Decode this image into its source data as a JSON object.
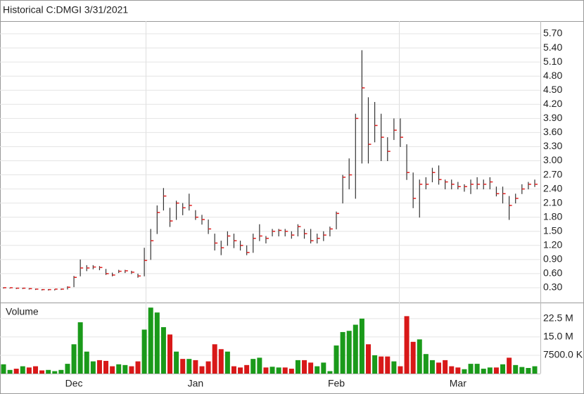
{
  "chart_data": {
    "type": "ohlc",
    "title": "Historical C:DMGI 3/31/2021",
    "categories": [
      null,
      null,
      null,
      null,
      null,
      null,
      null,
      null,
      null,
      null,
      null,
      "Dec",
      null,
      null,
      null,
      null,
      null,
      null,
      null,
      null,
      null,
      null,
      null,
      null,
      null,
      null,
      null,
      null,
      null,
      null,
      "Jan",
      null,
      null,
      null,
      null,
      null,
      null,
      null,
      null,
      null,
      null,
      null,
      null,
      null,
      null,
      null,
      null,
      null,
      null,
      null,
      null,
      null,
      "Feb",
      null,
      null,
      null,
      null,
      null,
      null,
      null,
      null,
      null,
      null,
      null,
      null,
      null,
      null,
      null,
      null,
      null,
      null,
      "Mar",
      null,
      null,
      null,
      null,
      null,
      null,
      null,
      null,
      null,
      null,
      null,
      null
    ],
    "high": [
      0.31,
      0.3,
      0.3,
      0.3,
      0.29,
      0.28,
      0.27,
      0.27,
      0.27,
      0.28,
      0.33,
      0.55,
      0.9,
      0.78,
      0.78,
      0.76,
      0.7,
      0.62,
      0.68,
      0.68,
      0.66,
      0.6,
      1.15,
      1.55,
      2.05,
      2.42,
      2.0,
      2.15,
      2.1,
      2.3,
      1.95,
      1.85,
      1.75,
      1.45,
      1.3,
      1.5,
      1.45,
      1.3,
      1.2,
      1.45,
      1.65,
      1.4,
      1.55,
      1.55,
      1.55,
      1.5,
      1.65,
      1.55,
      1.55,
      1.45,
      1.5,
      1.6,
      1.92,
      2.7,
      3.05,
      4.0,
      5.35,
      4.35,
      4.25,
      4.0,
      3.5,
      3.9,
      3.9,
      3.35,
      2.75,
      2.6,
      2.65,
      2.85,
      2.9,
      2.6,
      2.6,
      2.55,
      2.5,
      2.6,
      2.65,
      2.6,
      2.65,
      2.45,
      2.45,
      2.25,
      2.3,
      2.5,
      2.55,
      2.6
    ],
    "low": [
      0.29,
      0.29,
      0.28,
      0.28,
      0.27,
      0.26,
      0.25,
      0.25,
      0.25,
      0.26,
      0.27,
      0.32,
      0.55,
      0.66,
      0.7,
      0.68,
      0.58,
      0.55,
      0.62,
      0.62,
      0.6,
      0.52,
      0.55,
      0.9,
      1.45,
      1.95,
      1.6,
      1.75,
      1.85,
      1.95,
      1.75,
      1.65,
      1.45,
      1.1,
      1.0,
      1.2,
      1.15,
      1.1,
      1.0,
      1.05,
      1.3,
      1.25,
      1.4,
      1.4,
      1.4,
      1.35,
      1.4,
      1.35,
      1.25,
      1.25,
      1.3,
      1.4,
      1.55,
      2.1,
      2.4,
      2.2,
      2.95,
      2.95,
      3.4,
      3.0,
      3.0,
      3.45,
      3.3,
      2.6,
      2.0,
      1.8,
      2.4,
      2.55,
      2.5,
      2.4,
      2.4,
      2.4,
      2.35,
      2.3,
      2.4,
      2.4,
      2.4,
      2.25,
      2.1,
      1.75,
      2.1,
      2.3,
      2.4,
      2.45
    ],
    "close": [
      0.3,
      0.3,
      0.29,
      0.29,
      0.28,
      0.27,
      0.26,
      0.26,
      0.27,
      0.27,
      0.31,
      0.52,
      0.72,
      0.72,
      0.74,
      0.73,
      0.6,
      0.57,
      0.65,
      0.66,
      0.63,
      0.55,
      0.88,
      1.3,
      1.9,
      2.25,
      1.72,
      2.1,
      2.0,
      2.05,
      1.8,
      1.75,
      1.55,
      1.25,
      1.15,
      1.4,
      1.3,
      1.2,
      1.05,
      1.35,
      1.4,
      1.35,
      1.5,
      1.52,
      1.5,
      1.42,
      1.6,
      1.45,
      1.3,
      1.35,
      1.42,
      1.55,
      1.88,
      2.65,
      2.7,
      3.9,
      4.55,
      3.35,
      3.75,
      3.5,
      3.2,
      3.65,
      3.5,
      2.75,
      2.2,
      2.5,
      2.5,
      2.75,
      2.6,
      2.55,
      2.5,
      2.45,
      2.45,
      2.5,
      2.5,
      2.5,
      2.55,
      2.3,
      2.3,
      2.05,
      2.2,
      2.4,
      2.5,
      2.5
    ],
    "bar_color": "#333333",
    "close_color": "#e02020",
    "ylim": [
      0,
      5.97
    ],
    "yticks": [
      {
        "value": 0.3,
        "label": "0.30"
      },
      {
        "value": 0.6,
        "label": "0.60"
      },
      {
        "value": 0.9,
        "label": "0.90"
      },
      {
        "value": 1.2,
        "label": "1.20"
      },
      {
        "value": 1.5,
        "label": "1.50"
      },
      {
        "value": 1.8,
        "label": "1.80"
      },
      {
        "value": 2.1,
        "label": "2.10"
      },
      {
        "value": 2.4,
        "label": "2.40"
      },
      {
        "value": 2.7,
        "label": "2.70"
      },
      {
        "value": 3.0,
        "label": "3.00"
      },
      {
        "value": 3.3,
        "label": "3.30"
      },
      {
        "value": 3.6,
        "label": "3.60"
      },
      {
        "value": 3.9,
        "label": "3.90"
      },
      {
        "value": 4.2,
        "label": "4.20"
      },
      {
        "value": 4.5,
        "label": "4.50"
      },
      {
        "value": 4.8,
        "label": "4.80"
      },
      {
        "value": 5.1,
        "label": "5.10"
      },
      {
        "value": 5.4,
        "label": "5.40"
      },
      {
        "value": 5.7,
        "label": "5.70"
      }
    ],
    "grid": true,
    "volume": {
      "name": "Volume",
      "values": [
        3800000,
        1500000,
        2000000,
        3000000,
        2500000,
        3000000,
        1300000,
        1500000,
        1000000,
        1500000,
        4000000,
        12000000,
        21000000,
        9000000,
        5000000,
        5500000,
        5200000,
        3000000,
        3800000,
        3500000,
        3000000,
        5000000,
        18000000,
        27000000,
        25000000,
        19000000,
        16000000,
        9000000,
        6000000,
        6000000,
        5500000,
        3000000,
        5000000,
        12000000,
        10000000,
        9000000,
        3000000,
        2500000,
        3500000,
        6000000,
        6500000,
        2500000,
        2800000,
        2500000,
        2500000,
        2000000,
        5500000,
        5500000,
        4500000,
        3000000,
        4500000,
        1000000,
        11500000,
        17000000,
        17500000,
        20000000,
        22500000,
        12000000,
        7500000,
        7000000,
        7000000,
        5000000,
        3000000,
        23500000,
        13000000,
        14000000,
        8000000,
        5500000,
        4500000,
        5500000,
        3000000,
        2500000,
        1800000,
        4000000,
        4000000,
        2000000,
        2500000,
        2500000,
        3800000,
        6500000,
        3500000,
        2700000,
        2300000,
        3000000
      ],
      "up_color": "#1a9a1a",
      "down_color": "#d81818",
      "ylim": [
        0,
        28500000
      ],
      "yticks": [
        {
          "value": 7500000,
          "label": "7500.0 K"
        },
        {
          "value": 15000000,
          "label": "15.0 M"
        },
        {
          "value": 22500000,
          "label": "22.5 M"
        }
      ]
    }
  }
}
